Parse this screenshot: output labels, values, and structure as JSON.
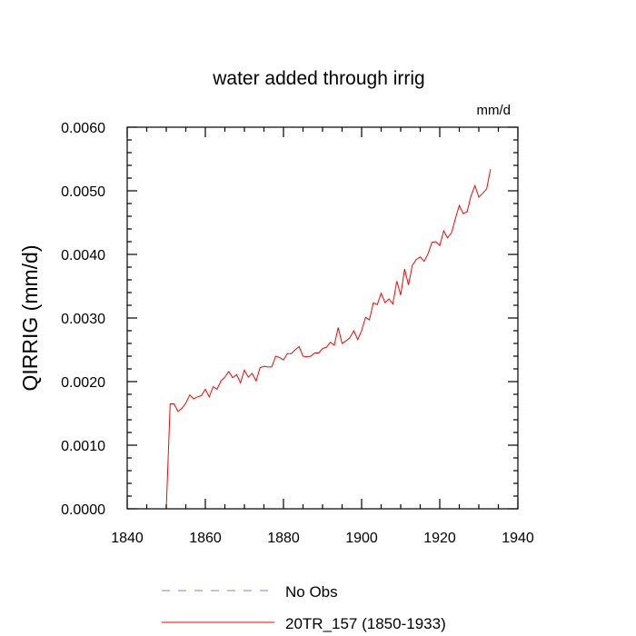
{
  "chart_data": {
    "type": "line",
    "title": "water added through irrig",
    "units": "mm/d",
    "xlabel": "",
    "ylabel": "QIRRIG  (mm/d)",
    "xlim": [
      1840,
      1940
    ],
    "ylim": [
      0.0,
      0.006
    ],
    "x_major_ticks": [
      1840,
      1860,
      1880,
      1900,
      1920,
      1940
    ],
    "x_tick_labels": [
      "1840",
      "1860",
      "1880",
      "1900",
      "1920",
      "1940"
    ],
    "y_major_ticks": [
      0.0,
      0.001,
      0.002,
      0.003,
      0.004,
      0.005,
      0.006
    ],
    "y_tick_labels": [
      "0.0000",
      "0.0010",
      "0.0020",
      "0.0030",
      "0.0040",
      "0.0050",
      "0.0060"
    ],
    "legend_position": "bottom",
    "series": [
      {
        "name": "No Obs",
        "legend_label": "No Obs",
        "color": "#7b7bff",
        "style": "dashed",
        "x": [],
        "y": []
      },
      {
        "name": "20TR_157",
        "legend_label": "20TR_157 (1850-1933)",
        "color": "#ff0000",
        "style": "solid",
        "x": [
          1850,
          1851,
          1852,
          1853,
          1854,
          1855,
          1856,
          1857,
          1858,
          1859,
          1860,
          1861,
          1862,
          1863,
          1864,
          1865,
          1866,
          1867,
          1868,
          1869,
          1870,
          1871,
          1872,
          1873,
          1874,
          1875,
          1876,
          1877,
          1878,
          1879,
          1880,
          1881,
          1882,
          1883,
          1884,
          1885,
          1886,
          1887,
          1888,
          1889,
          1890,
          1891,
          1892,
          1893,
          1894,
          1895,
          1896,
          1897,
          1898,
          1899,
          1900,
          1901,
          1902,
          1903,
          1904,
          1905,
          1906,
          1907,
          1908,
          1909,
          1910,
          1911,
          1912,
          1913,
          1914,
          1915,
          1916,
          1917,
          1918,
          1919,
          1920,
          1921,
          1922,
          1923,
          1924,
          1925,
          1926,
          1927,
          1928,
          1929,
          1930,
          1931,
          1932,
          1933
        ],
        "y": [
          0.0,
          0.00165,
          0.00165,
          0.00153,
          0.00158,
          0.00166,
          0.00179,
          0.00173,
          0.00176,
          0.00178,
          0.00188,
          0.00176,
          0.00192,
          0.00188,
          0.00201,
          0.00207,
          0.00216,
          0.00206,
          0.00211,
          0.00198,
          0.00218,
          0.00207,
          0.00213,
          0.00201,
          0.00222,
          0.00224,
          0.00223,
          0.00223,
          0.0024,
          0.00238,
          0.00234,
          0.00244,
          0.00244,
          0.0025,
          0.00255,
          0.0024,
          0.00239,
          0.0024,
          0.00245,
          0.00245,
          0.00252,
          0.00254,
          0.00262,
          0.00257,
          0.00285,
          0.0026,
          0.00264,
          0.00269,
          0.0028,
          0.00266,
          0.0028,
          0.00301,
          0.00297,
          0.00324,
          0.00321,
          0.00339,
          0.00324,
          0.0033,
          0.00322,
          0.00358,
          0.00336,
          0.00377,
          0.00352,
          0.00383,
          0.00392,
          0.00396,
          0.00389,
          0.00401,
          0.00419,
          0.0042,
          0.00414,
          0.00437,
          0.00426,
          0.00434,
          0.00456,
          0.00477,
          0.00464,
          0.00467,
          0.00492,
          0.00508,
          0.0049,
          0.00496,
          0.00503,
          0.00534
        ]
      }
    ]
  }
}
